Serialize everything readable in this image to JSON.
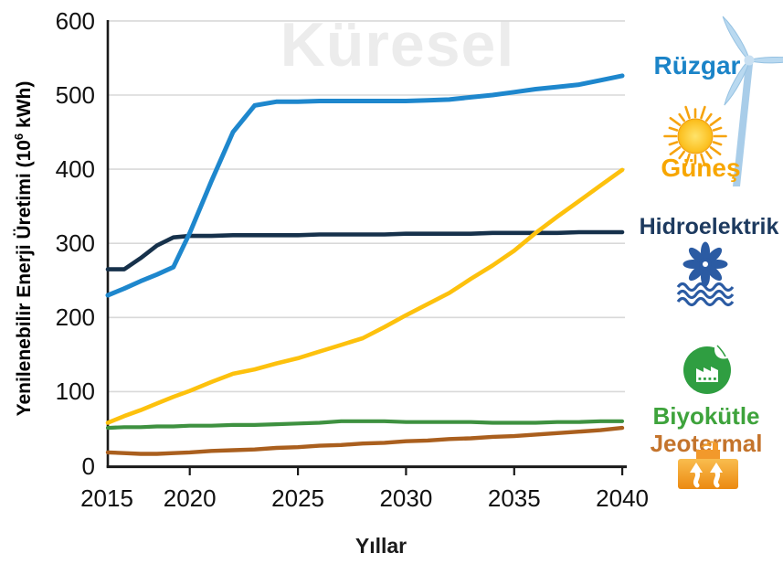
{
  "chart_data": {
    "type": "line",
    "watermark": "Küresel",
    "xlabel": "Yıllar",
    "ylabel": "Yenilenebilir Enerji Üretimi (10⁶ kWh)",
    "ylabel_parts": {
      "prefix": "Yenilenebilir Enerji Üretimi (10",
      "sup": "6",
      "suffix": " kWh)"
    },
    "xlim": [
      2015,
      2040
    ],
    "ylim": [
      0,
      600
    ],
    "x_ticks": [
      "2015",
      "2020",
      "2025",
      "2030",
      "2035",
      "2040"
    ],
    "y_ticks": [
      "600",
      "500",
      "400",
      "300",
      "200",
      "100",
      "0"
    ],
    "grid": "horizontal gridlines every 100",
    "legend_position": "right-outside, icons with colored labels",
    "x": [
      2015,
      2016,
      2017,
      2018,
      2019,
      2020,
      2021,
      2022,
      2023,
      2024,
      2025,
      2026,
      2027,
      2028,
      2029,
      2030,
      2031,
      2032,
      2033,
      2034,
      2035,
      2036,
      2037,
      2038,
      2039,
      2040
    ],
    "series": [
      {
        "name": "Rüzgar",
        "slug": "ruzgar",
        "color": "#1e87cd",
        "label_color": "#1b84c8",
        "icon": "wind-turbine-icon",
        "icon_color": "#aed2ec",
        "values": [
          230,
          239,
          249,
          258,
          268,
          314,
          384,
          450,
          486,
          491,
          491,
          492,
          492,
          492,
          492,
          492,
          493,
          494,
          497,
          500,
          504,
          508,
          511,
          514,
          520,
          526
        ]
      },
      {
        "name": "Güneş",
        "slug": "gunes",
        "color": "#fdc10d",
        "label_color": "#f7a600",
        "icon": "sun-icon",
        "icon_color": "#f9b400",
        "values": [
          58,
          67,
          75,
          84,
          93,
          101,
          113,
          124,
          130,
          138,
          145,
          154,
          163,
          172,
          187,
          203,
          218,
          233,
          252,
          270,
          290,
          314,
          336,
          357,
          378,
          399
        ]
      },
      {
        "name": "Hidroelektrik",
        "slug": "hidroelektrik",
        "color": "#16314b",
        "label_color": "#1d3a5f",
        "icon": "hydro-turbine-icon",
        "icon_color": "#2b5ba3",
        "values": [
          265,
          265,
          280,
          297,
          308,
          310,
          310,
          311,
          311,
          311,
          311,
          312,
          312,
          312,
          312,
          313,
          313,
          313,
          313,
          314,
          314,
          314,
          314,
          315,
          315,
          315
        ]
      },
      {
        "name": "Biyokütle",
        "slug": "biyokutle",
        "color": "#3e9140",
        "label_color": "#3ea33c",
        "icon": "biomass-factory-icon",
        "icon_color": "#2f9e41",
        "values": [
          51,
          52,
          52,
          53,
          53,
          54,
          54,
          55,
          55,
          56,
          57,
          58,
          60,
          60,
          60,
          59,
          59,
          59,
          59,
          58,
          58,
          58,
          59,
          59,
          60,
          60
        ]
      },
      {
        "name": "Jeotermal",
        "slug": "jeotermal",
        "color": "#aa5f1e",
        "label_color": "#c4742c",
        "icon": "geothermal-icon",
        "icon_color": "#f0961e",
        "values": [
          18,
          17,
          16,
          16,
          17,
          18,
          20,
          21,
          22,
          24,
          25,
          27,
          28,
          30,
          31,
          33,
          34,
          36,
          37,
          39,
          40,
          42,
          44,
          46,
          48,
          51
        ]
      }
    ]
  }
}
